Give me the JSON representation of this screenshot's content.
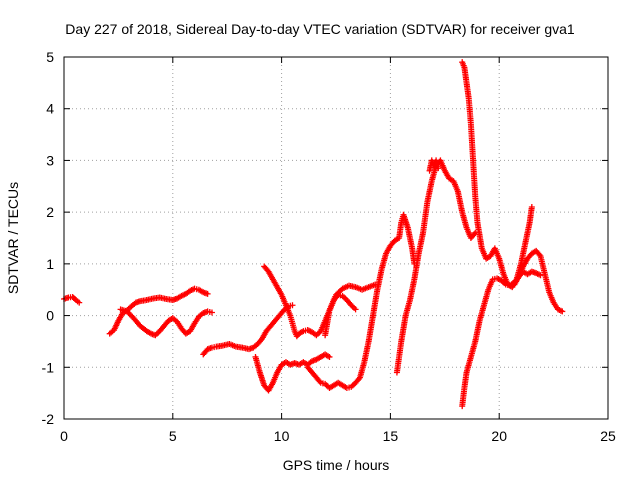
{
  "chart_data": {
    "type": "scatter",
    "title": "Day 227 of 2018, Sidereal Day-to-day VTEC variation (SDTVAR) for receiver gva1",
    "xlabel": "GPS time / hours",
    "ylabel": "SDTVAR / TECUs",
    "xlim": [
      0,
      25
    ],
    "ylim": [
      -2,
      5
    ],
    "xticks": [
      0,
      5,
      10,
      15,
      20,
      25
    ],
    "yticks": [
      -2,
      -1,
      0,
      1,
      2,
      3,
      4,
      5
    ],
    "grid": true,
    "legend": "none",
    "marker": "plus",
    "color": "#ff0000",
    "series": [
      {
        "points": [
          [
            0,
            0.32
          ],
          [
            0.2,
            0.35
          ],
          [
            0.4,
            0.36
          ],
          [
            0.55,
            0.3
          ],
          [
            0.7,
            0.25
          ]
        ]
      },
      {
        "points": [
          [
            2.1,
            -0.35
          ],
          [
            2.3,
            -0.28
          ],
          [
            2.5,
            -0.1
          ],
          [
            2.7,
            0.05
          ],
          [
            2.9,
            0.1
          ],
          [
            3.1,
            0.18
          ],
          [
            3.3,
            0.25
          ],
          [
            3.5,
            0.28
          ],
          [
            3.8,
            0.3
          ],
          [
            4.1,
            0.33
          ],
          [
            4.4,
            0.35
          ],
          [
            4.7,
            0.32
          ],
          [
            5.0,
            0.3
          ],
          [
            5.2,
            0.33
          ],
          [
            5.4,
            0.38
          ],
          [
            5.6,
            0.42
          ],
          [
            5.8,
            0.48
          ],
          [
            6.0,
            0.52
          ],
          [
            6.2,
            0.5
          ],
          [
            6.4,
            0.45
          ],
          [
            6.6,
            0.42
          ]
        ]
      },
      {
        "points": [
          [
            2.6,
            0.12
          ],
          [
            2.9,
            0.08
          ],
          [
            3.2,
            -0.05
          ],
          [
            3.5,
            -0.2
          ],
          [
            3.8,
            -0.3
          ],
          [
            4.0,
            -0.35
          ],
          [
            4.2,
            -0.38
          ],
          [
            4.4,
            -0.3
          ],
          [
            4.6,
            -0.2
          ],
          [
            4.8,
            -0.1
          ],
          [
            5.0,
            -0.05
          ],
          [
            5.2,
            -0.12
          ],
          [
            5.4,
            -0.25
          ],
          [
            5.6,
            -0.35
          ],
          [
            5.8,
            -0.3
          ],
          [
            6.0,
            -0.15
          ],
          [
            6.2,
            -0.02
          ],
          [
            6.4,
            0.05
          ],
          [
            6.6,
            0.08
          ],
          [
            6.8,
            0.06
          ]
        ]
      },
      {
        "points": [
          [
            6.4,
            -0.75
          ],
          [
            6.6,
            -0.65
          ],
          [
            6.8,
            -0.62
          ],
          [
            7.0,
            -0.6
          ],
          [
            7.3,
            -0.58
          ],
          [
            7.6,
            -0.55
          ],
          [
            7.9,
            -0.6
          ],
          [
            8.2,
            -0.62
          ],
          [
            8.5,
            -0.65
          ],
          [
            8.7,
            -0.62
          ],
          [
            8.9,
            -0.55
          ],
          [
            9.1,
            -0.45
          ],
          [
            9.3,
            -0.3
          ],
          [
            9.5,
            -0.2
          ],
          [
            9.7,
            -0.1
          ],
          [
            9.9,
            0.0
          ],
          [
            10.1,
            0.1
          ],
          [
            10.3,
            0.18
          ],
          [
            10.5,
            0.2
          ]
        ]
      },
      {
        "points": [
          [
            9.2,
            0.95
          ],
          [
            9.4,
            0.85
          ],
          [
            9.6,
            0.7
          ],
          [
            9.8,
            0.55
          ],
          [
            10.0,
            0.4
          ],
          [
            10.2,
            0.2
          ],
          [
            10.4,
            0.0
          ],
          [
            10.5,
            -0.15
          ],
          [
            10.6,
            -0.3
          ],
          [
            10.7,
            -0.4
          ],
          [
            10.8,
            -0.35
          ],
          [
            11.0,
            -0.3
          ],
          [
            11.2,
            -0.28
          ],
          [
            11.4,
            -0.32
          ],
          [
            11.6,
            -0.38
          ],
          [
            11.8,
            -0.3
          ],
          [
            12.0,
            -0.1
          ],
          [
            12.2,
            0.1
          ],
          [
            12.4,
            0.3
          ],
          [
            12.6,
            0.4
          ],
          [
            12.8,
            0.38
          ],
          [
            13.0,
            0.3
          ],
          [
            13.2,
            0.2
          ],
          [
            13.4,
            0.12
          ]
        ]
      },
      {
        "points": [
          [
            8.8,
            -0.8
          ],
          [
            9.0,
            -1.1
          ],
          [
            9.2,
            -1.35
          ],
          [
            9.4,
            -1.45
          ],
          [
            9.6,
            -1.3
          ],
          [
            9.8,
            -1.1
          ],
          [
            10.0,
            -0.95
          ],
          [
            10.2,
            -0.9
          ],
          [
            10.4,
            -0.95
          ],
          [
            10.6,
            -0.92
          ],
          [
            10.8,
            -0.95
          ],
          [
            11.0,
            -0.9
          ],
          [
            11.2,
            -0.95
          ],
          [
            11.4,
            -0.88
          ],
          [
            11.6,
            -0.85
          ],
          [
            11.8,
            -0.8
          ],
          [
            12.0,
            -0.75
          ],
          [
            12.2,
            -0.8
          ]
        ]
      },
      {
        "points": [
          [
            11.2,
            -1.0
          ],
          [
            11.4,
            -1.1
          ],
          [
            11.6,
            -1.2
          ],
          [
            11.8,
            -1.3
          ],
          [
            12.0,
            -1.32
          ],
          [
            12.2,
            -1.4
          ],
          [
            12.4,
            -1.35
          ],
          [
            12.6,
            -1.3
          ],
          [
            12.8,
            -1.35
          ],
          [
            13.0,
            -1.4
          ],
          [
            13.2,
            -1.38
          ],
          [
            13.4,
            -1.3
          ],
          [
            13.6,
            -1.2
          ],
          [
            13.8,
            -0.9
          ],
          [
            14.0,
            -0.5
          ],
          [
            14.2,
            0.0
          ],
          [
            14.4,
            0.5
          ],
          [
            14.6,
            0.9
          ],
          [
            14.8,
            1.2
          ],
          [
            15.0,
            1.35
          ],
          [
            15.2,
            1.45
          ],
          [
            15.4,
            1.5
          ],
          [
            15.5,
            1.8
          ],
          [
            15.6,
            1.95
          ],
          [
            15.8,
            1.7
          ],
          [
            16.0,
            1.3
          ],
          [
            16.1,
            1.0
          ]
        ]
      },
      {
        "points": [
          [
            12.0,
            -0.38
          ],
          [
            12.2,
            0.1
          ],
          [
            12.5,
            0.4
          ],
          [
            12.8,
            0.52
          ],
          [
            13.1,
            0.58
          ],
          [
            13.4,
            0.55
          ],
          [
            13.7,
            0.5
          ],
          [
            14.0,
            0.55
          ],
          [
            14.3,
            0.6
          ]
        ]
      },
      {
        "points": [
          [
            15.3,
            -1.1
          ],
          [
            15.5,
            -0.5
          ],
          [
            15.7,
            0.0
          ],
          [
            15.9,
            0.3
          ],
          [
            16.1,
            0.7
          ],
          [
            16.3,
            1.2
          ],
          [
            16.5,
            1.6
          ],
          [
            16.7,
            2.2
          ],
          [
            16.9,
            2.6
          ],
          [
            17.1,
            2.9
          ],
          [
            17.3,
            3.0
          ],
          [
            17.5,
            2.8
          ],
          [
            17.7,
            2.65
          ],
          [
            17.9,
            2.6
          ],
          [
            18.1,
            2.4
          ],
          [
            18.3,
            2.0
          ],
          [
            18.5,
            1.7
          ],
          [
            18.7,
            1.5
          ],
          [
            18.9,
            1.6
          ]
        ]
      },
      {
        "points": [
          [
            16.8,
            2.8
          ],
          [
            16.9,
            3.0
          ],
          [
            17.0,
            2.9
          ],
          [
            17.1,
            3.0
          ],
          [
            17.2,
            2.85
          ]
        ]
      },
      {
        "points": [
          [
            18.3,
            4.9
          ],
          [
            18.4,
            4.8
          ],
          [
            18.5,
            4.5
          ],
          [
            18.6,
            4.2
          ],
          [
            18.7,
            3.7
          ],
          [
            18.8,
            3.0
          ],
          [
            18.9,
            2.3
          ],
          [
            19.0,
            1.8
          ],
          [
            19.2,
            1.3
          ],
          [
            19.4,
            1.1
          ],
          [
            19.6,
            1.15
          ],
          [
            19.8,
            1.3
          ],
          [
            20.0,
            1.1
          ],
          [
            20.2,
            0.8
          ],
          [
            20.4,
            0.6
          ],
          [
            20.6,
            0.55
          ],
          [
            20.8,
            0.7
          ],
          [
            21.0,
            1.0
          ],
          [
            21.2,
            1.4
          ],
          [
            21.4,
            1.8
          ],
          [
            21.5,
            2.1
          ]
        ]
      },
      {
        "points": [
          [
            18.3,
            -1.75
          ],
          [
            18.4,
            -1.4
          ],
          [
            18.5,
            -1.1
          ],
          [
            18.7,
            -0.8
          ],
          [
            18.9,
            -0.5
          ],
          [
            19.1,
            -0.1
          ],
          [
            19.3,
            0.2
          ],
          [
            19.5,
            0.5
          ],
          [
            19.7,
            0.7
          ],
          [
            19.9,
            0.72
          ],
          [
            20.1,
            0.68
          ],
          [
            20.3,
            0.6
          ],
          [
            20.5,
            0.58
          ],
          [
            20.7,
            0.65
          ],
          [
            20.9,
            0.75
          ],
          [
            21.1,
            0.85
          ],
          [
            21.3,
            0.8
          ],
          [
            21.5,
            0.85
          ],
          [
            21.7,
            0.82
          ],
          [
            21.9,
            0.78
          ]
        ]
      },
      {
        "points": [
          [
            20.7,
            0.6
          ],
          [
            20.9,
            0.75
          ],
          [
            21.1,
            0.95
          ],
          [
            21.3,
            1.1
          ],
          [
            21.5,
            1.2
          ],
          [
            21.7,
            1.25
          ],
          [
            21.9,
            1.15
          ],
          [
            22.1,
            0.8
          ],
          [
            22.3,
            0.45
          ],
          [
            22.5,
            0.25
          ],
          [
            22.7,
            0.12
          ],
          [
            22.9,
            0.08
          ]
        ]
      }
    ]
  }
}
